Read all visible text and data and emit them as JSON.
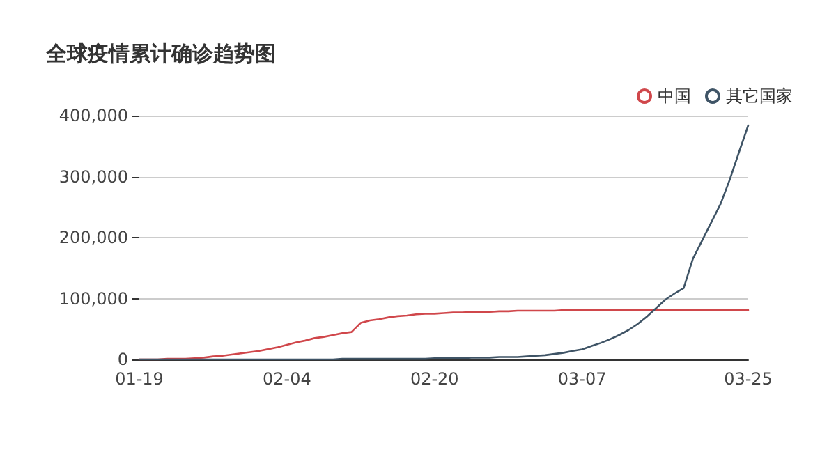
{
  "chart_data": {
    "type": "line",
    "title": "全球疫情累计确诊趋势图",
    "categories": [
      "01-19",
      null,
      null,
      null,
      null,
      null,
      null,
      null,
      null,
      null,
      null,
      null,
      null,
      null,
      null,
      null,
      "02-04",
      null,
      null,
      null,
      null,
      null,
      null,
      null,
      null,
      null,
      null,
      null,
      null,
      null,
      null,
      null,
      "02-20",
      null,
      null,
      null,
      null,
      null,
      null,
      null,
      null,
      null,
      null,
      null,
      null,
      null,
      null,
      null,
      "03-07",
      null,
      null,
      null,
      null,
      null,
      null,
      null,
      null,
      null,
      null,
      null,
      null,
      null,
      null,
      null,
      null,
      null,
      "03-25"
    ],
    "series": [
      {
        "name": "中国",
        "color": "#d0474b",
        "values": [
          0,
          0,
          0,
          1000,
          1000,
          1000,
          2000,
          3000,
          5000,
          6000,
          8000,
          10000,
          12000,
          14000,
          17000,
          20000,
          24000,
          28000,
          31000,
          35000,
          37000,
          40000,
          43000,
          45000,
          60000,
          64000,
          66000,
          69000,
          71000,
          72000,
          74000,
          75000,
          75000,
          76000,
          77000,
          77000,
          78000,
          78000,
          78000,
          79000,
          79000,
          80000,
          80000,
          80000,
          80000,
          80000,
          81000,
          81000,
          81000,
          81000,
          81000,
          81000,
          81000,
          81000,
          81000,
          81000,
          81000,
          81000,
          81000,
          81000,
          81000,
          81000,
          81000,
          81000,
          81000,
          81000,
          81000
        ]
      },
      {
        "name": "其它国家",
        "color": "#3f5466",
        "values": [
          0,
          0,
          0,
          0,
          0,
          0,
          0,
          0,
          0,
          0,
          0,
          0,
          0,
          0,
          0,
          0,
          0,
          0,
          0,
          0,
          0,
          0,
          1000,
          1000,
          1000,
          1000,
          1000,
          1000,
          1000,
          1000,
          1000,
          1000,
          2000,
          2000,
          2000,
          2000,
          3000,
          3000,
          3000,
          4000,
          4000,
          4000,
          5000,
          6000,
          7000,
          9000,
          11000,
          14000,
          16500,
          22000,
          27000,
          33000,
          40000,
          48000,
          58000,
          70000,
          84000,
          98000,
          108000,
          117000,
          165000,
          195000,
          225000,
          255000,
          295000,
          340000,
          384000
        ]
      }
    ],
    "ylim": [
      0,
      400000
    ],
    "yticks": [
      {
        "value": 0,
        "label": "0"
      },
      {
        "value": 100000,
        "label": "100,000"
      },
      {
        "value": 200000,
        "label": "200,000"
      },
      {
        "value": 300000,
        "label": "300,000"
      },
      {
        "value": 400000,
        "label": "400,000"
      }
    ],
    "grid": "y",
    "legend": "top right",
    "line_style": "solid"
  }
}
